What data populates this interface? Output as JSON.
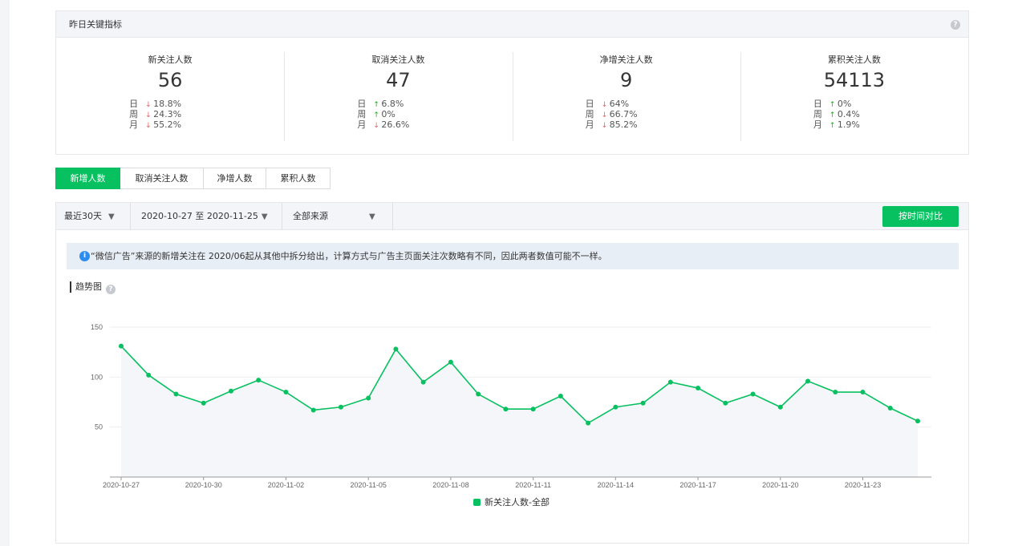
{
  "kpi": {
    "header_title": "昨日关键指标",
    "help_glyph": "?",
    "columns": [
      {
        "title": "新关注人数",
        "value": "56",
        "rows": [
          {
            "label": "日",
            "dir": "down",
            "pct": "18.8%"
          },
          {
            "label": "周",
            "dir": "down",
            "pct": "24.3%"
          },
          {
            "label": "月",
            "dir": "down",
            "pct": "55.2%"
          }
        ]
      },
      {
        "title": "取消关注人数",
        "value": "47",
        "rows": [
          {
            "label": "日",
            "dir": "up",
            "pct": "6.8%"
          },
          {
            "label": "周",
            "dir": "up",
            "pct": "0%"
          },
          {
            "label": "月",
            "dir": "down",
            "pct": "26.6%"
          }
        ]
      },
      {
        "title": "净增关注人数",
        "value": "9",
        "rows": [
          {
            "label": "日",
            "dir": "down",
            "pct": "64%"
          },
          {
            "label": "周",
            "dir": "down",
            "pct": "66.7%"
          },
          {
            "label": "月",
            "dir": "down",
            "pct": "85.2%"
          }
        ]
      },
      {
        "title": "累积关注人数",
        "value": "54113",
        "rows": [
          {
            "label": "日",
            "dir": "up",
            "pct": "0%"
          },
          {
            "label": "周",
            "dir": "up",
            "pct": "0.4%"
          },
          {
            "label": "月",
            "dir": "up",
            "pct": "1.9%"
          }
        ]
      }
    ]
  },
  "arrows": {
    "up": "🡅",
    "down": "🡇"
  },
  "tabs": [
    {
      "label": "新增人数",
      "active": true
    },
    {
      "label": "取消关注人数",
      "active": false
    },
    {
      "label": "净增人数",
      "active": false
    },
    {
      "label": "累积人数",
      "active": false
    }
  ],
  "filters": {
    "period": "最近30天",
    "date_range": "2020-10-27 至 2020-11-25",
    "source": "全部来源",
    "caret": "▼",
    "compare_button": "按时间对比"
  },
  "notice": {
    "icon": "i",
    "text": "“微信广告”来源的新增关注在 2020/06起从其他中拆分给出，计算方式与广告主页面关注次数略有不同，因此两者数值可能不一样。"
  },
  "trend": {
    "title": "趋势图"
  },
  "colors": {
    "accent": "#07c160",
    "up": "#1aad19",
    "down": "#e15f63",
    "info": "#2d8cf0"
  },
  "chart_data": {
    "type": "area",
    "x": [
      "2020-10-27",
      "2020-10-28",
      "2020-10-29",
      "2020-10-30",
      "2020-10-31",
      "2020-11-01",
      "2020-11-02",
      "2020-11-03",
      "2020-11-04",
      "2020-11-05",
      "2020-11-06",
      "2020-11-07",
      "2020-11-08",
      "2020-11-09",
      "2020-11-10",
      "2020-11-11",
      "2020-11-12",
      "2020-11-13",
      "2020-11-14",
      "2020-11-15",
      "2020-11-16",
      "2020-11-17",
      "2020-11-18",
      "2020-11-19",
      "2020-11-20",
      "2020-11-21",
      "2020-11-22",
      "2020-11-23",
      "2020-11-24",
      "2020-11-25"
    ],
    "x_tick_labels": [
      "2020-10-27",
      "2020-10-30",
      "2020-11-02",
      "2020-11-05",
      "2020-11-08",
      "2020-11-11",
      "2020-11-14",
      "2020-11-17",
      "2020-11-20",
      "2020-11-23"
    ],
    "series": [
      {
        "name": "新关注人数-全部",
        "values": [
          131,
          102,
          83,
          74,
          86,
          97,
          85,
          67,
          70,
          79,
          128,
          95,
          115,
          83,
          68,
          68,
          81,
          54,
          70,
          74,
          95,
          89,
          74,
          83,
          70,
          96,
          85,
          85,
          69,
          56
        ]
      }
    ],
    "yticks": [
      50,
      100,
      150
    ],
    "ylim": [
      0,
      150
    ],
    "grid": true,
    "legend_position": "bottom"
  }
}
